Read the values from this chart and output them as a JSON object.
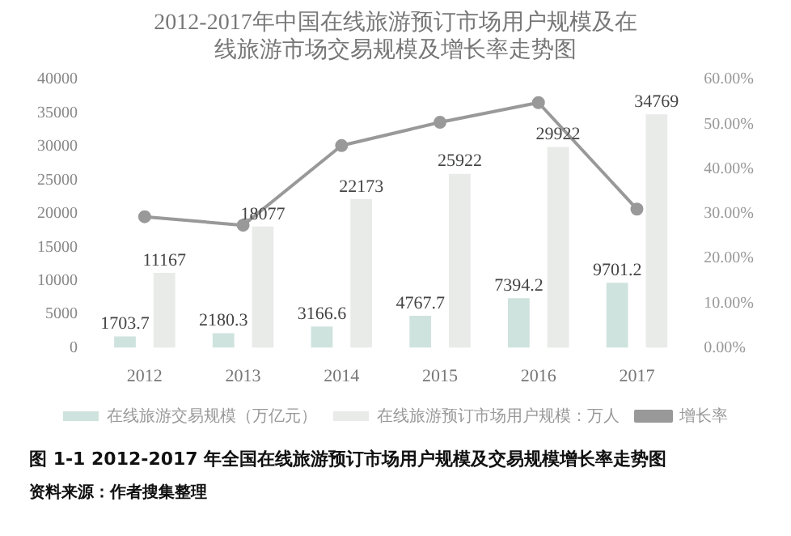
{
  "chart_data": {
    "type": "bar",
    "title": "2012-2017年中国在线旅游预订市场用户规模及在线旅游市场交易规模及增长率走势图",
    "categories": [
      "2012",
      "2013",
      "2014",
      "2015",
      "2016",
      "2017"
    ],
    "series": [
      {
        "name": "在线旅游交易规模（万亿元）",
        "color": "#cfe3de",
        "values": [
          1703.7,
          2180.3,
          3166.6,
          4767.7,
          7394.2,
          9701.2
        ],
        "value_labels": [
          "1703.7",
          "2180.3",
          "3166.6",
          "4767.7",
          "7394.2",
          "9701.2"
        ]
      },
      {
        "name": "在线旅游预订市场用户规模：万人",
        "color": "#e8ebe8",
        "values": [
          11167,
          18077,
          22173,
          25922,
          29922,
          34769
        ],
        "value_labels": [
          "11167",
          "18077",
          "22173",
          "25922",
          "29922",
          "34769"
        ]
      },
      {
        "name": "增长率",
        "type": "line",
        "axis": "y2",
        "color": "#999999",
        "values": [
          29.3,
          27.4,
          45.2,
          50.4,
          54.8,
          31.0
        ]
      }
    ],
    "ylim": [
      0,
      40000
    ],
    "yticks": [
      0,
      5000,
      10000,
      15000,
      20000,
      25000,
      30000,
      35000,
      40000
    ],
    "y2lim": [
      0,
      60
    ],
    "y2ticks": [
      {
        "value": 0,
        "label": "0.00%"
      },
      {
        "value": 10,
        "label": "10.00%"
      },
      {
        "value": 20,
        "label": "20.00%"
      },
      {
        "value": 30,
        "label": "30.00%"
      },
      {
        "value": 40,
        "label": "40.00%"
      },
      {
        "value": 50,
        "label": "50.00%"
      },
      {
        "value": 60,
        "label": "60.00%"
      }
    ],
    "legend": "bottom",
    "marker": "circle",
    "grid": false,
    "annotations": [
      "图 1-1   2012-2017 年全国在线旅游预订市场用户规模及交易规模增长率走势图",
      "资料来源：作者搜集整理"
    ]
  }
}
